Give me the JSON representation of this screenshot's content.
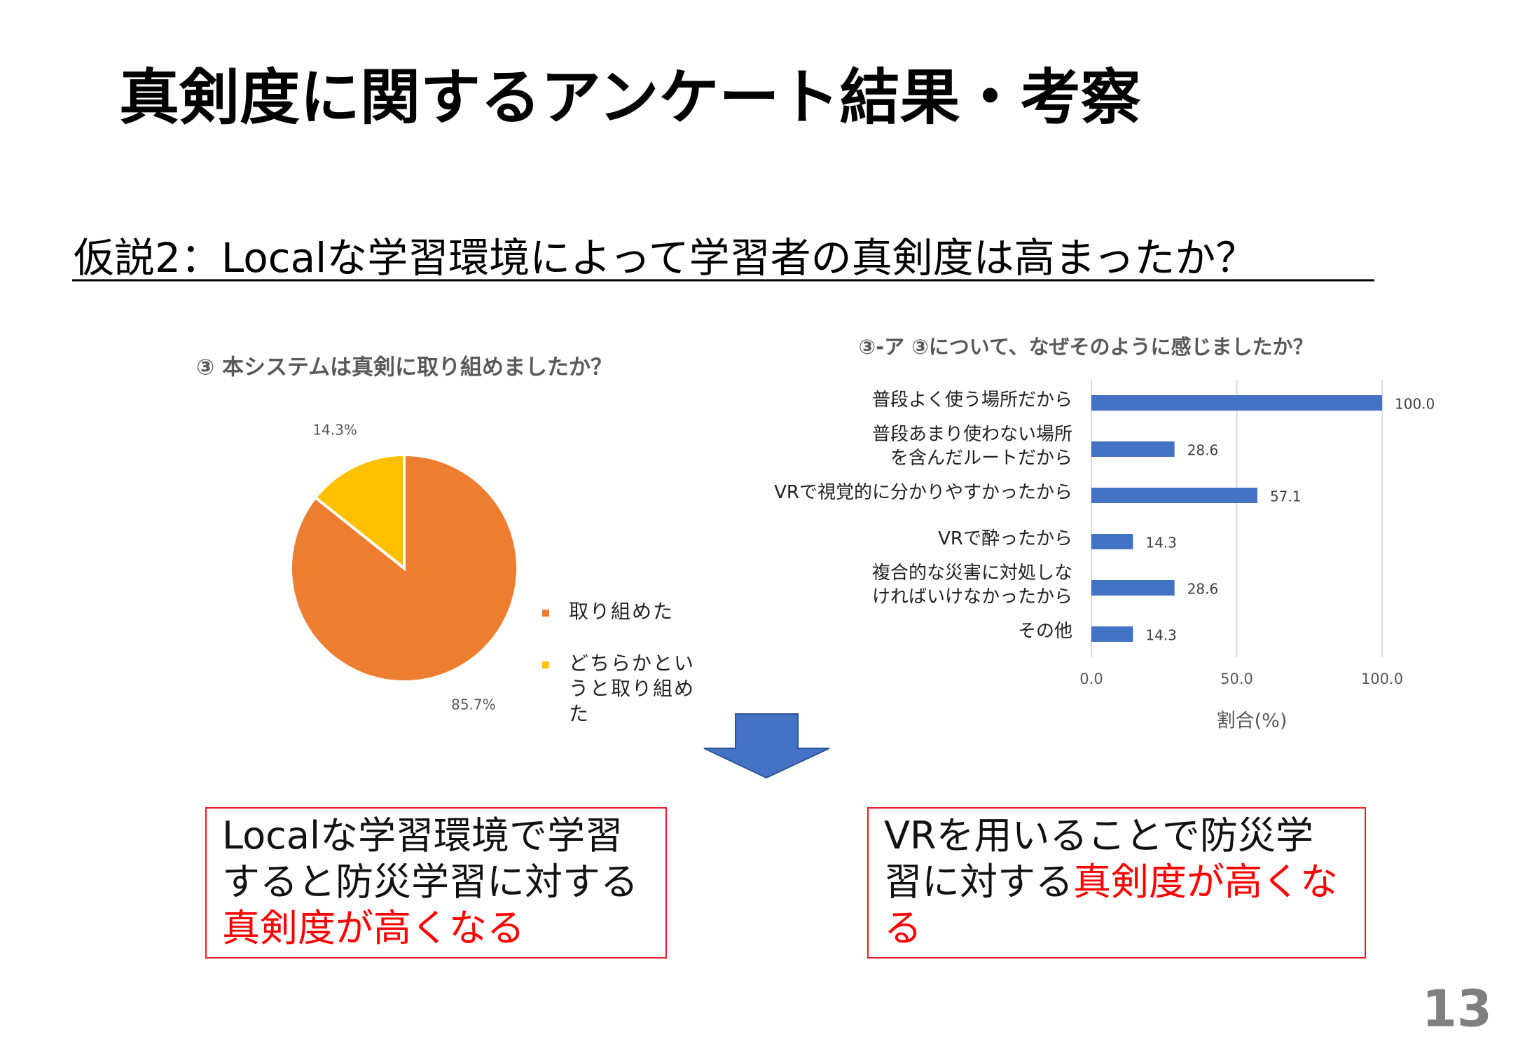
{
  "title": "真剣度に関するアンケート結果・考察",
  "subtitle": "仮説2：Localな学習環境によって学習者の真剣度は高まったか？",
  "chart_data": [
    {
      "type": "pie",
      "title": "③ 本システムは真剣に取り組めましたか？",
      "series": [
        {
          "name": "取り組めた",
          "color": "#ED7D31"
        },
        {
          "name": "どちらかというと取り組めた",
          "color": "#FFC000"
        }
      ],
      "values": [
        85.7,
        14.3
      ],
      "value_labels": [
        "85.7%",
        "14.3%"
      ],
      "legend": "right"
    },
    {
      "type": "barh",
      "title": "③-ア ③について、なぜそのように感じましたか？",
      "categories": [
        "普段よく使う場所だから",
        "普段あまり使わない場所\nを含んだルートだから",
        "VRで視覚的に分かりやすかったから",
        "VRで酔ったから",
        "複合的な災害に対処しな\nければいけなかったから",
        "その他"
      ],
      "values": [
        100.0,
        28.6,
        57.1,
        14.3,
        28.6,
        14.3
      ],
      "value_labels": [
        "100.0",
        "28.6",
        "57.1",
        "14.3",
        "28.6",
        "14.3"
      ],
      "color": "#4472C4",
      "xlim": [
        0,
        100
      ],
      "xticks": [
        {
          "value": 0,
          "label": "0.0"
        },
        {
          "value": 50,
          "label": "50.0"
        },
        {
          "value": 100,
          "label": "100.0"
        }
      ],
      "xlabel": "割合(%)",
      "grid": true
    }
  ],
  "conclusions": [
    {
      "plain": "Localな学習環境で学習すると防災学習に対する",
      "emphasis": "真剣度が高くなる"
    },
    {
      "plain": "VRを用いることで防災学習に対する",
      "emphasis": "真剣度が高くなる"
    }
  ],
  "page_number": "13"
}
